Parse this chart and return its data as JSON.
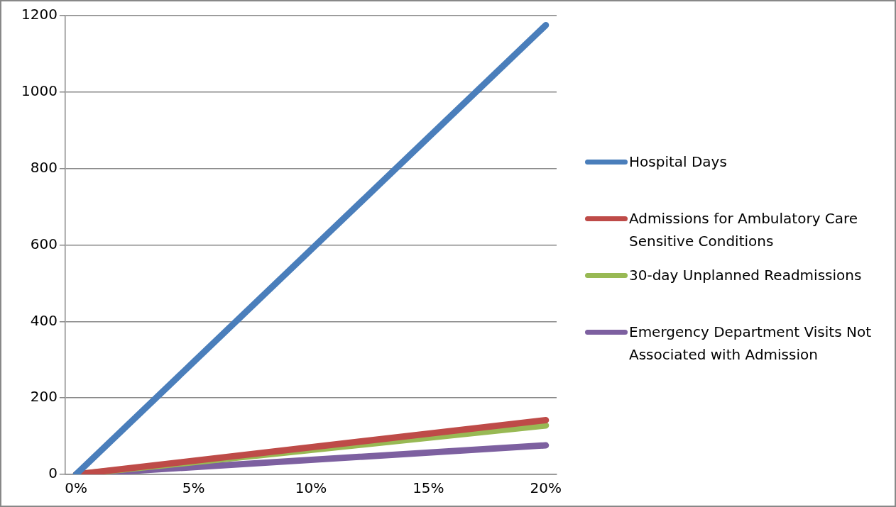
{
  "chart_data": {
    "type": "line",
    "x": [
      0,
      20
    ],
    "xlim": [
      -0.46,
      20.46
    ],
    "xticks": [
      {
        "value": 0,
        "label": "0%"
      },
      {
        "value": 5,
        "label": "5%"
      },
      {
        "value": 10,
        "label": "10%"
      },
      {
        "value": 15,
        "label": "15%"
      },
      {
        "value": 20,
        "label": "20%"
      }
    ],
    "ylim": [
      0,
      1200
    ],
    "yticks": [
      0,
      200,
      400,
      600,
      800,
      1000,
      1200
    ],
    "grid": "y",
    "legend": "right",
    "marker": "none",
    "series": [
      {
        "name": "Hospital Days",
        "color": "#4a7ebb",
        "values": [
          0,
          1175
        ]
      },
      {
        "name": "Admissions for Ambulatory Care Sensitive Conditions",
        "color": "#be4b48",
        "values": [
          0,
          142
        ]
      },
      {
        "name": "30-day Unplanned Readmissions",
        "color": "#98b954",
        "values": [
          0,
          128
        ]
      },
      {
        "name": "Emergency Department Visits Not Associated with Admission",
        "color": "#7d60a0",
        "values": [
          0,
          76
        ]
      }
    ]
  }
}
